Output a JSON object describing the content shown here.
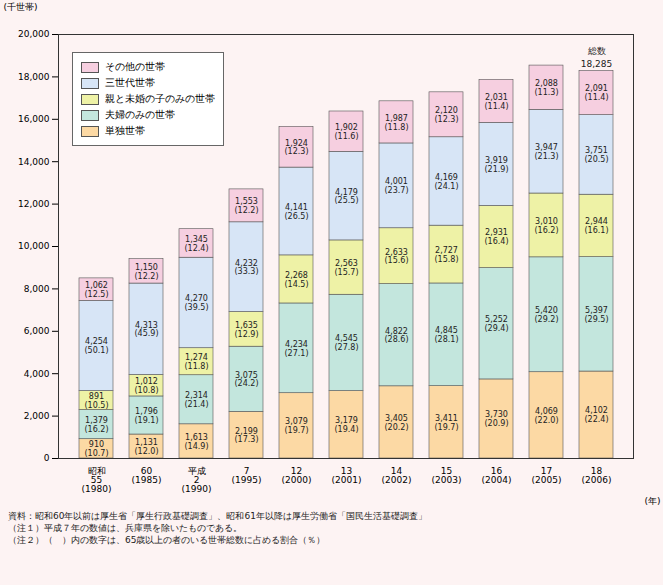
{
  "chart_data": {
    "type": "bar",
    "stacked": true,
    "data_labels": true,
    "grid": false,
    "legend": "top-left",
    "ylabel": "(千世帯)",
    "xlabel": "(年)",
    "categories": [
      "昭和\n55\n(1980)",
      "60\n(1985)",
      "平成\n2\n(1990)",
      "7\n(1995)",
      "12\n(2000)",
      "13\n(2001)",
      "14\n(2002)",
      "15\n(2003)",
      "16\n(2004)",
      "17\n(2005)",
      "18\n(2006)"
    ],
    "ylim": [
      0,
      20000
    ],
    "yticks": [
      0,
      {
        "value": 2000,
        "label": "2,000"
      },
      {
        "value": 4000,
        "label": "4,000"
      },
      {
        "value": 6000,
        "label": "6,000"
      },
      {
        "value": 8000,
        "label": "8,000"
      },
      {
        "value": 10000,
        "label": "10,000"
      },
      {
        "value": 12000,
        "label": "12,000"
      },
      {
        "value": 14000,
        "label": "14,000"
      },
      {
        "value": 16000,
        "label": "16,000"
      },
      {
        "value": 18000,
        "label": "18,000"
      },
      {
        "value": 20000,
        "label": "20,000"
      }
    ],
    "series": [
      {
        "name": "単独世帯",
        "color": "#fcd9a4",
        "values": [
          910,
          1131,
          1613,
          2199,
          3079,
          3179,
          3405,
          3411,
          3730,
          4069,
          4102
        ],
        "value_labels": [
          "910",
          "1,131",
          "1,613",
          "2,199",
          "3,079",
          "3,179",
          "3,405",
          "3,411",
          "3,730",
          "4,069",
          "4,102"
        ],
        "share_labels": [
          "(10.7)",
          "(12.0)",
          "(14.9)",
          "(17.3)",
          "(19.7)",
          "(19.4)",
          "(20.2)",
          "(19.7)",
          "(20.9)",
          "(22.0)",
          "(22.4)"
        ]
      },
      {
        "name": "夫婦のみの世帯",
        "color": "#c3e6dd",
        "values": [
          1379,
          1796,
          2314,
          3075,
          4234,
          4545,
          4822,
          4845,
          5252,
          5420,
          5397
        ],
        "value_labels": [
          "1,379",
          "1,796",
          "2,314",
          "3,075",
          "4,234",
          "4,545",
          "4,822",
          "4,845",
          "5,252",
          "5,420",
          "5,397"
        ],
        "share_labels": [
          "(16.2)",
          "(19.1)",
          "(21.4)",
          "(24.2)",
          "(27.1)",
          "(27.8)",
          "(28.6)",
          "(28.1)",
          "(29.4)",
          "(29.2)",
          "(29.5)"
        ]
      },
      {
        "name": "親と未婚の子のみの世帯",
        "color": "#eef2a6",
        "values": [
          891,
          1012,
          1274,
          1635,
          2268,
          2563,
          2633,
          2727,
          2931,
          3010,
          2944
        ],
        "value_labels": [
          "891",
          "1,012",
          "1,274",
          "1,635",
          "2,268",
          "2,563",
          "2,633",
          "2,727",
          "2,931",
          "3,010",
          "2,944"
        ],
        "share_labels": [
          "(10.5)",
          "(10.8)",
          "(11.8)",
          "(12.9)",
          "(14.5)",
          "(15.7)",
          "(15.6)",
          "(15.8)",
          "(16.4)",
          "(16.2)",
          "(16.1)"
        ]
      },
      {
        "name": "三世代世帯",
        "color": "#d7e5f6",
        "values": [
          4254,
          4313,
          4270,
          4232,
          4141,
          4179,
          4001,
          4169,
          3919,
          3947,
          3751
        ],
        "value_labels": [
          "4,254",
          "4,313",
          "4,270",
          "4,232",
          "4,141",
          "4,179",
          "4,001",
          "4,169",
          "3,919",
          "3,947",
          "3,751"
        ],
        "share_labels": [
          "(50.1)",
          "(45.9)",
          "(39.5)",
          "(33.3)",
          "(26.5)",
          "(25.5)",
          "(23.7)",
          "(24.1)",
          "(21.9)",
          "(21.3)",
          "(20.5)"
        ]
      },
      {
        "name": "その他の世帯",
        "color": "#f6cfe0",
        "values": [
          1062,
          1150,
          1345,
          1553,
          1924,
          1902,
          1987,
          2120,
          2031,
          2088,
          2091
        ],
        "value_labels": [
          "1,062",
          "1,150",
          "1,345",
          "1,553",
          "1,924",
          "1,902",
          "1,987",
          "2,120",
          "2,031",
          "2,088",
          "2,091"
        ],
        "share_labels": [
          "(12.5)",
          "(12.2)",
          "(12.4)",
          "(12.2)",
          "(12.3)",
          "(11.6)",
          "(11.8)",
          "(12.3)",
          "(11.4)",
          "(11.3)",
          "(11.4)"
        ]
      }
    ],
    "total": {
      "category": "18\n(2006)",
      "label": "総数",
      "value": 18285,
      "value_label": "18,285"
    },
    "notes": [
      "資料：昭和60年以前は厚生省「厚生行政基礎調査」、昭和61年以降は厚生労働省「国民生活基礎調査」",
      "（注１）平成７年の数値は、兵庫県を除いたものである。",
      "（注２）（　）内の数字は、65歳以上の者のいる世帯総数に占める割合（％）"
    ]
  }
}
